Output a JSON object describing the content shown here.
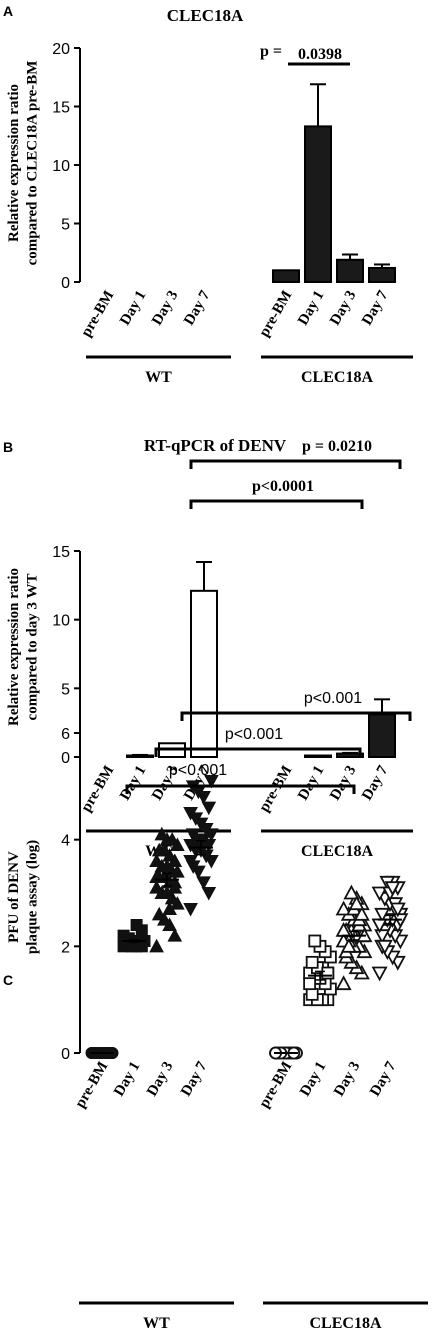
{
  "chart_data": [
    {
      "panel": "A",
      "type": "bar",
      "title": "CLEC18A",
      "ylabel": "Relative expression ratio\ncompared to CLEC18A pre-BM",
      "ylim": [
        0,
        20
      ],
      "yticks": [
        0,
        5,
        10,
        15,
        20
      ],
      "groups": [
        {
          "name": "WT",
          "categories": [
            "pre-BM",
            "Day 1",
            "Day 3",
            "Day 7"
          ],
          "values": [
            0,
            0,
            0,
            0
          ],
          "errors": [
            0,
            0,
            0,
            0
          ],
          "fill": "#1a1a1a"
        },
        {
          "name": "CLEC18A",
          "categories": [
            "pre-BM",
            "Day 1",
            "Day 3",
            "Day 7"
          ],
          "values": [
            1.0,
            13.3,
            1.9,
            1.2
          ],
          "errors": [
            0,
            3.6,
            0.45,
            0.3
          ],
          "fill": "#1a1a1a"
        }
      ],
      "annotations": [
        {
          "label": "p = ",
          "value": "0.0398",
          "from": [
            1,
            1
          ],
          "to": [
            1,
            1
          ]
        }
      ]
    },
    {
      "panel": "B",
      "type": "bar",
      "title": "RT-qPCR of DENV",
      "ylabel": "Relative expression ratio\ncompared to day 3 WT",
      "ylim": [
        0,
        15
      ],
      "yticks": [
        0,
        5,
        10,
        15
      ],
      "groups": [
        {
          "name": "WT",
          "categories": [
            "pre-BM",
            "Day 1",
            "Day 3",
            "Day 7"
          ],
          "values": [
            0,
            0.1,
            1.0,
            12.1
          ],
          "errors": [
            0,
            0.05,
            0,
            2.1
          ],
          "fill": "#ffffff"
        },
        {
          "name": "CLEC18A",
          "categories": [
            "pre-BM",
            "Day 1",
            "Day 3",
            "Day 7"
          ],
          "values": [
            0,
            0.05,
            0.25,
            3.1
          ],
          "errors": [
            0,
            0,
            0.05,
            1.1
          ],
          "fill": "#1a1a1a"
        }
      ],
      "annotations": [
        {
          "label": "p<0.0001",
          "from": [
            0,
            3
          ],
          "to": [
            1,
            2
          ]
        },
        {
          "label": "p = 0.0210",
          "from": [
            0,
            3
          ],
          "to": [
            1,
            3
          ]
        }
      ]
    },
    {
      "panel": "C",
      "type": "scatter",
      "ylabel": "PFU of DENV\nplaque assay (log)",
      "ylim": [
        0,
        6
      ],
      "yticks": [
        0,
        2,
        4,
        6
      ],
      "groups": [
        {
          "name": "WT",
          "categories": [
            "pre-BM",
            "Day 1",
            "Day 3",
            "Day 7"
          ],
          "markers": [
            "circle",
            "square",
            "triangle-up",
            "triangle-down"
          ],
          "filled": true,
          "means": [
            0,
            2.1,
            3.25,
            3.85
          ],
          "sems": [
            0,
            0.02,
            0.12,
            0.13
          ],
          "points": [
            [
              0,
              0,
              0,
              0,
              0,
              0,
              0,
              0,
              0,
              0,
              0,
              0,
              0,
              0,
              0,
              0
            ],
            [
              2.0,
              2.0,
              2.0,
              2.05,
              2.05,
              2.1,
              2.1,
              2.1,
              2.15,
              2.2,
              2.3,
              2.4,
              2.0,
              2.05,
              2.1,
              2.1
            ],
            [
              2.0,
              2.2,
              2.4,
              2.5,
              2.6,
              2.8,
              2.9,
              3.0,
              3.0,
              3.1,
              3.2,
              3.2,
              3.3,
              3.3,
              3.4,
              3.4,
              3.5,
              3.5,
              3.6,
              3.6,
              3.7,
              3.8,
              3.8,
              3.9,
              4.0,
              4.0,
              4.1,
              3.3,
              3.1,
              2.7
            ],
            [
              2.7,
              3.0,
              3.2,
              3.4,
              3.5,
              3.6,
              3.7,
              3.8,
              3.8,
              3.9,
              3.9,
              4.0,
              4.0,
              4.1,
              4.1,
              4.2,
              4.3,
              4.4,
              4.5,
              4.6,
              4.8,
              4.9,
              5.0,
              5.1,
              3.7,
              3.9,
              4.0,
              3.6
            ]
          ]
        },
        {
          "name": "CLEC18A",
          "categories": [
            "pre-BM",
            "Day 1",
            "Day 3",
            "Day 7"
          ],
          "markers": [
            "circle",
            "square",
            "triangle-up",
            "triangle-down"
          ],
          "filled": false,
          "means": [
            0,
            1.45,
            2.2,
            2.5
          ],
          "sems": [
            0,
            0.08,
            0.08,
            0.08
          ],
          "points": [
            [
              0,
              0,
              0,
              0,
              0,
              0,
              0,
              0,
              0,
              0,
              0,
              0,
              0,
              0,
              0,
              0,
              0,
              0,
              0,
              0
            ],
            [
              1.0,
              1.0,
              1.0,
              1.0,
              1.1,
              1.2,
              1.3,
              1.4,
              1.4,
              1.5,
              1.5,
              1.6,
              1.6,
              1.7,
              1.8,
              1.9,
              2.0,
              2.1,
              1.3,
              1.5
            ],
            [
              1.3,
              1.5,
              1.6,
              1.7,
              1.8,
              1.9,
              2.0,
              2.0,
              2.1,
              2.1,
              2.2,
              2.2,
              2.3,
              2.3,
              2.4,
              2.4,
              2.5,
              2.6,
              2.7,
              2.8,
              2.9,
              3.0,
              1.9,
              2.2,
              2.5,
              2.7,
              2.0,
              2.3,
              2.6,
              2.8
            ],
            [
              1.5,
              1.7,
              1.8,
              1.9,
              2.0,
              2.1,
              2.2,
              2.3,
              2.3,
              2.4,
              2.4,
              2.5,
              2.5,
              2.6,
              2.6,
              2.7,
              2.8,
              2.9,
              3.0,
              3.1,
              3.2,
              3.2,
              2.2,
              2.5,
              2.8,
              3.0,
              2.0,
              2.4,
              2.7,
              3.1
            ]
          ]
        }
      ],
      "annotations": [
        {
          "label": "p<0.001",
          "from": [
            0,
            1
          ],
          "to": [
            1,
            1
          ]
        },
        {
          "label": "p<0.001",
          "from": [
            0,
            2
          ],
          "to": [
            1,
            2
          ]
        },
        {
          "label": "p<0.001",
          "from": [
            0,
            3
          ],
          "to": [
            1,
            3
          ]
        }
      ]
    }
  ]
}
